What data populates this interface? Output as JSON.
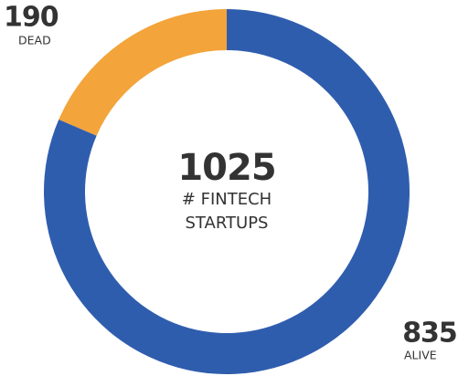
{
  "chart_data": {
    "type": "donut",
    "categories": [
      "ALIVE",
      "DEAD"
    ],
    "values": [
      835,
      190
    ],
    "colors": [
      "#2f5dae",
      "#f3a43b"
    ],
    "total": 1025,
    "center_label": [
      "# FINTECH",
      "STARTUPS"
    ]
  }
}
